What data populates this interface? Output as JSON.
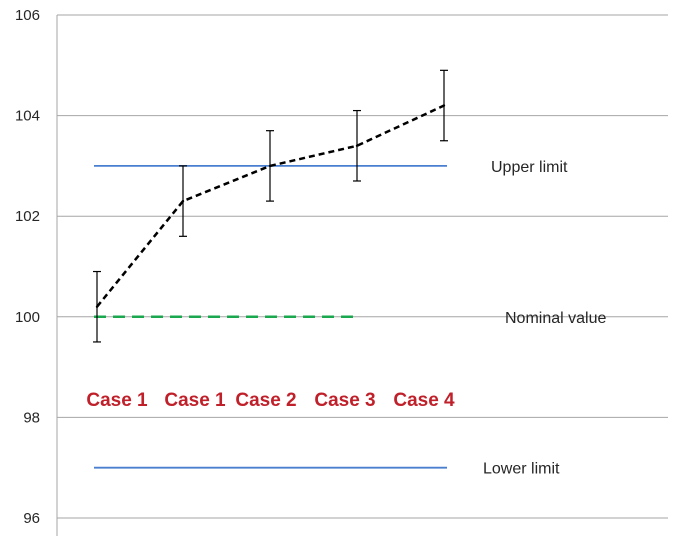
{
  "chart_data": {
    "type": "line",
    "ylim": [
      96,
      106
    ],
    "y_ticks": [
      96,
      98,
      100,
      102,
      104,
      106
    ],
    "y_tick_labels": [
      "96",
      "98",
      "100",
      "102",
      "104",
      "106"
    ],
    "grid": true,
    "categories": [
      "Case 1",
      "Case 1",
      "Case 2",
      "Case 3",
      "Case 4"
    ],
    "series": [
      {
        "values": [
          100.2,
          102.3,
          103.0,
          103.4,
          104.2
        ],
        "error_low": [
          99.5,
          101.6,
          102.3,
          102.7,
          103.5
        ],
        "error_high": [
          100.9,
          103.0,
          103.7,
          104.1,
          104.9
        ],
        "style": "dashed",
        "color": "#000000"
      }
    ],
    "reference_lines": [
      {
        "label": "Upper limit",
        "value": 103,
        "color": "#4a7fd0",
        "style": "solid"
      },
      {
        "label": "Nominal value",
        "value": 100,
        "color": "#1aa84f",
        "style": "dashed"
      },
      {
        "label": "Lower limit",
        "value": 97,
        "color": "#4a7fd0",
        "style": "solid"
      }
    ]
  }
}
